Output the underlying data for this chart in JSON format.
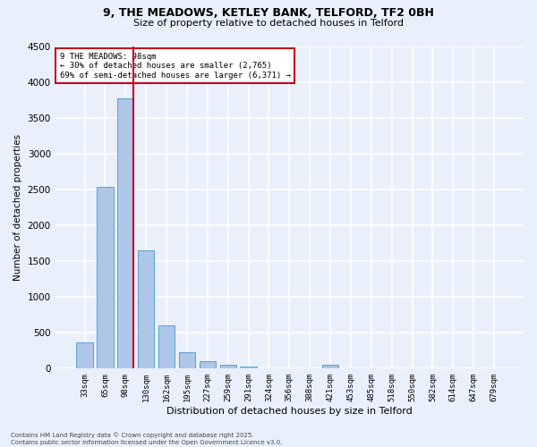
{
  "title_line1": "9, THE MEADOWS, KETLEY BANK, TELFORD, TF2 0BH",
  "title_line2": "Size of property relative to detached houses in Telford",
  "xlabel": "Distribution of detached houses by size in Telford",
  "ylabel": "Number of detached properties",
  "categories": [
    "33sqm",
    "65sqm",
    "98sqm",
    "130sqm",
    "162sqm",
    "195sqm",
    "227sqm",
    "259sqm",
    "291sqm",
    "324sqm",
    "356sqm",
    "388sqm",
    "421sqm",
    "453sqm",
    "485sqm",
    "518sqm",
    "550sqm",
    "582sqm",
    "614sqm",
    "647sqm",
    "679sqm"
  ],
  "values": [
    370,
    2530,
    3775,
    1650,
    600,
    230,
    105,
    60,
    30,
    5,
    0,
    0,
    60,
    0,
    0,
    0,
    0,
    0,
    0,
    0,
    0
  ],
  "bar_color": "#aec6e8",
  "bar_edge_color": "#5a9fd4",
  "highlight_index": 2,
  "highlight_color": "#c8001a",
  "annotation_text": "9 THE MEADOWS: 98sqm\n← 30% of detached houses are smaller (2,765)\n69% of semi-detached houses are larger (6,371) →",
  "annotation_box_color": "#ffffff",
  "annotation_box_edge_color": "#c8001a",
  "ylim": [
    0,
    4500
  ],
  "yticks": [
    0,
    500,
    1000,
    1500,
    2000,
    2500,
    3000,
    3500,
    4000,
    4500
  ],
  "background_color": "#eaf0fb",
  "grid_color": "#ffffff",
  "footer_line1": "Contains HM Land Registry data © Crown copyright and database right 2025.",
  "footer_line2": "Contains public sector information licensed under the Open Government Licence v3.0."
}
